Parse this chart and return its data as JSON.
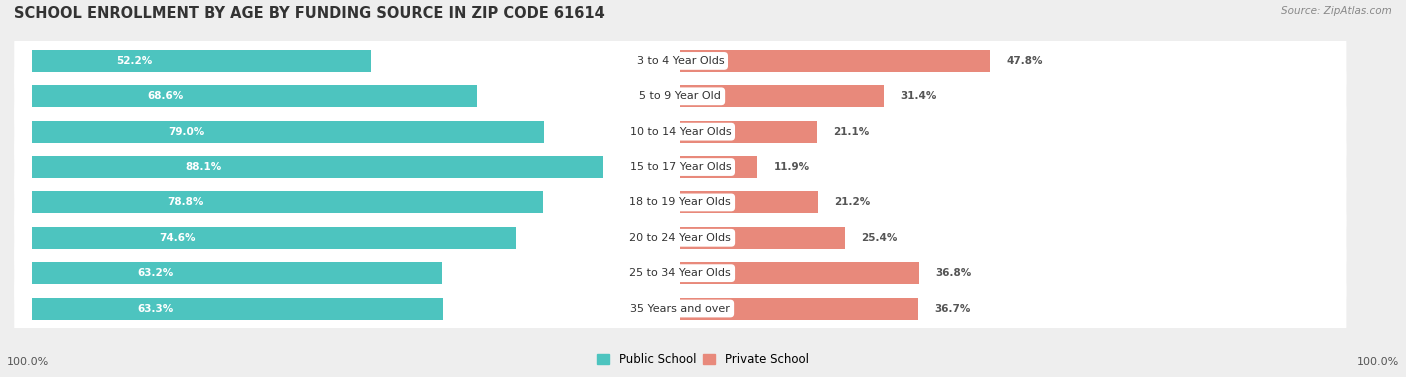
{
  "title": "SCHOOL ENROLLMENT BY AGE BY FUNDING SOURCE IN ZIP CODE 61614",
  "source": "Source: ZipAtlas.com",
  "categories": [
    "3 to 4 Year Olds",
    "5 to 9 Year Old",
    "10 to 14 Year Olds",
    "15 to 17 Year Olds",
    "18 to 19 Year Olds",
    "20 to 24 Year Olds",
    "25 to 34 Year Olds",
    "35 Years and over"
  ],
  "public_values": [
    52.2,
    68.6,
    79.0,
    88.1,
    78.8,
    74.6,
    63.2,
    63.3
  ],
  "private_values": [
    47.8,
    31.4,
    21.1,
    11.9,
    21.2,
    25.4,
    36.8,
    36.7
  ],
  "public_color": "#4DC4BF",
  "private_color": "#E8897B",
  "bg_color": "#EEEEEE",
  "row_bg_color": "#FFFFFF",
  "legend_public": "Public School",
  "legend_private": "Private School",
  "x_left_label": "100.0%",
  "x_right_label": "100.0%",
  "title_fontsize": 10.5,
  "source_fontsize": 7.5,
  "label_fontsize": 7.5,
  "cat_fontsize": 8,
  "bar_height": 0.62,
  "xlim": 100
}
